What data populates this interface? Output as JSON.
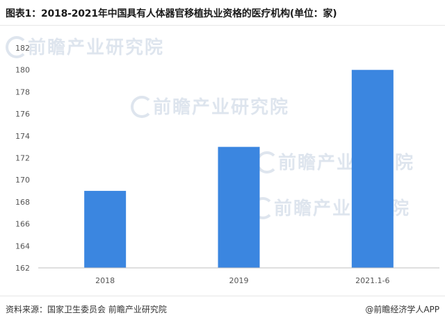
{
  "header": {
    "title": "图表1：2018-2021年中国具有人体器官移植执业资格的医疗机构(单位：家)"
  },
  "watermark": {
    "text": "前瞻产业研究院",
    "icon": "qianzhan-logo-icon"
  },
  "footer": {
    "source": "资料来源：国家卫生委员会 前瞻产业研究院",
    "brand": "@前瞻经济学人APP"
  },
  "colors": {
    "bar": "#3b86e0",
    "axis": "#bfbfbf",
    "text": "#333333"
  },
  "chart_data": {
    "type": "bar",
    "title": "图表1：2018-2021年中国具有人体器官移植执业资格的医疗机构(单位：家)",
    "xlabel": "",
    "ylabel": "",
    "categories": [
      "2018",
      "2019",
      "2021.1-6"
    ],
    "values": [
      169,
      173,
      180
    ],
    "ylim": [
      162,
      182
    ],
    "yticks": [
      "162",
      "164",
      "166",
      "168",
      "170",
      "172",
      "174",
      "176",
      "178",
      "180",
      "182"
    ],
    "grid": false,
    "legend": "none"
  }
}
